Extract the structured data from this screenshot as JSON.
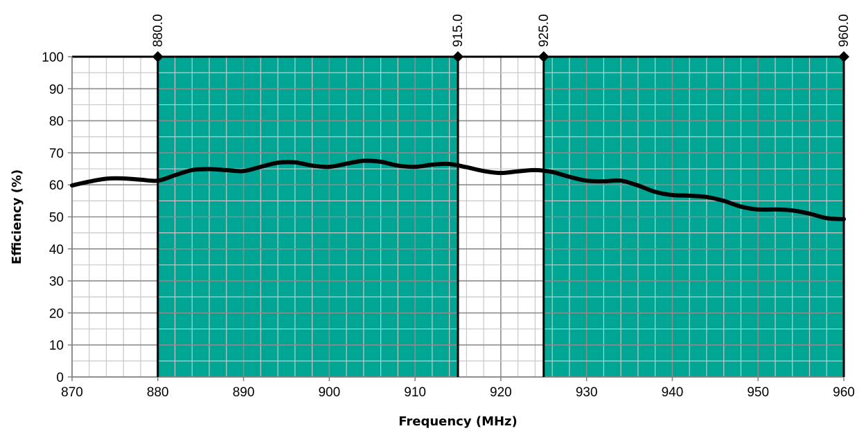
{
  "chart_data": {
    "type": "line",
    "xlabel": "Frequency (MHz)",
    "ylabel": "Efficiency (%)",
    "xlim": [
      870,
      960
    ],
    "ylim": [
      0,
      100
    ],
    "x_ticks": [
      870,
      880,
      890,
      900,
      910,
      920,
      930,
      940,
      950,
      960
    ],
    "y_ticks": [
      0,
      10,
      20,
      30,
      40,
      50,
      60,
      70,
      80,
      90,
      100
    ],
    "grid": true,
    "band_color": "#00A693",
    "line_color": "#000000",
    "bands": [
      {
        "start": 880,
        "end": 915
      },
      {
        "start": 925,
        "end": 960
      }
    ],
    "markers": [
      {
        "x": 880,
        "label": "880.0"
      },
      {
        "x": 915,
        "label": "915.0"
      },
      {
        "x": 925,
        "label": "925.0"
      },
      {
        "x": 960,
        "label": "960.0"
      }
    ],
    "series": [
      {
        "x": [
          870,
          872,
          874,
          876,
          878,
          880,
          882,
          884,
          886,
          888,
          890,
          892,
          894,
          896,
          898,
          900,
          902,
          904,
          906,
          908,
          910,
          912,
          914,
          916,
          918,
          920,
          922,
          924,
          926,
          928,
          930,
          932,
          934,
          936,
          938,
          940,
          942,
          944,
          946,
          948,
          950,
          952,
          954,
          956,
          958,
          960
        ],
        "y": [
          59.8,
          61.0,
          61.9,
          62.0,
          61.6,
          61.3,
          63.0,
          64.6,
          64.9,
          64.6,
          64.3,
          65.6,
          66.9,
          67.0,
          66.0,
          65.6,
          66.6,
          67.5,
          67.2,
          66.0,
          65.6,
          66.3,
          66.5,
          65.5,
          64.3,
          63.7,
          64.2,
          64.6,
          64.0,
          62.5,
          61.3,
          61.1,
          61.3,
          59.8,
          57.8,
          56.8,
          56.6,
          56.2,
          55.0,
          53.2,
          52.3,
          52.3,
          52.0,
          51.0,
          49.6,
          49.3
        ]
      }
    ]
  }
}
